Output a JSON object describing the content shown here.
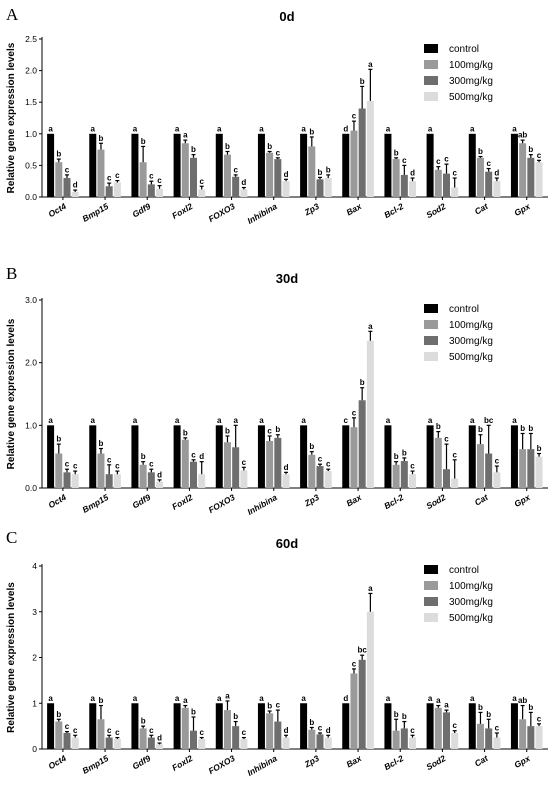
{
  "chart_data": [
    {
      "type": "bar",
      "panel_label": "A",
      "title": "0d",
      "ylabel": "Relative gene expression levels",
      "ylim": [
        0,
        2.5
      ],
      "yticks": [
        "0.0",
        "0.5",
        "1.0",
        "1.5",
        "2.0",
        "2.5"
      ],
      "categories": [
        "Oct4",
        "Bmp15",
        "Gdf9",
        "Foxl2",
        "FOXO3",
        "Inhibina",
        "Zp3",
        "Bax",
        "Bcl-2",
        "Sod2",
        "Cat",
        "Gpx"
      ],
      "legend_position": "top-right",
      "series": [
        {
          "name": "control",
          "color": "#000000",
          "values": [
            1,
            1,
            1,
            1,
            1,
            1,
            1,
            1,
            1,
            1,
            1,
            1
          ],
          "errors": [
            0,
            0,
            0,
            0,
            0,
            0,
            0,
            0,
            0,
            0,
            0,
            0
          ],
          "letters": [
            "a",
            "a",
            "a",
            "a",
            "a",
            "a",
            "a",
            "d",
            "a",
            "a",
            "a",
            "a"
          ]
        },
        {
          "name": "100mg/kg",
          "color": "#9a9a9a",
          "values": [
            0.55,
            0.75,
            0.55,
            0.85,
            0.67,
            0.7,
            0.8,
            1.05,
            0.6,
            0.43,
            0.62,
            0.85
          ],
          "errors": [
            0.05,
            0.1,
            0.25,
            0.05,
            0.05,
            0.02,
            0.15,
            0.15,
            0.02,
            0.05,
            0.02,
            0.05
          ],
          "letters": [
            "b",
            "b",
            "b",
            "a",
            "b",
            "b",
            "b",
            "c",
            "b",
            "c",
            "b",
            "ab"
          ]
        },
        {
          "name": "300mg/kg",
          "color": "#6e6e6e",
          "values": [
            0.3,
            0.17,
            0.2,
            0.62,
            0.32,
            0.6,
            0.28,
            1.4,
            0.35,
            0.37,
            0.4,
            0.62
          ],
          "errors": [
            0.05,
            0.05,
            0.05,
            0.05,
            0.03,
            0.02,
            0.03,
            0.35,
            0.15,
            0.15,
            0.05,
            0.05
          ],
          "letters": [
            "c",
            "c",
            "c",
            "b",
            "c",
            "c",
            "b",
            "b",
            "c",
            "c",
            "c",
            "b"
          ]
        },
        {
          "name": "500mg/kg",
          "color": "#dcdcdc",
          "values": [
            0.08,
            0.23,
            0.13,
            0.12,
            0.12,
            0.25,
            0.3,
            1.52,
            0.25,
            0.15,
            0.25,
            0.55
          ],
          "errors": [
            0.03,
            0.03,
            0.05,
            0.05,
            0.03,
            0.03,
            0.05,
            0.5,
            0.05,
            0.15,
            0.05,
            0.03
          ],
          "letters": [
            "d",
            "c",
            "c",
            "c",
            "d",
            "d",
            "b",
            "a",
            "d",
            "c",
            "d",
            "c"
          ]
        }
      ]
    },
    {
      "type": "bar",
      "panel_label": "B",
      "title": "30d",
      "ylabel": "Relative gene expression levels",
      "ylim": [
        0,
        3.0
      ],
      "yticks": [
        "0.0",
        "1.0",
        "2.0",
        "3.0"
      ],
      "categories": [
        "Oct4",
        "Bmp15",
        "Gdf9",
        "Foxl2",
        "FOXO3",
        "Inhibina",
        "Zp3",
        "Bax",
        "Bcl-2",
        "Sod2",
        "Cat",
        "Gpx"
      ],
      "legend_position": "top-right",
      "series": [
        {
          "name": "control",
          "color": "#000000",
          "values": [
            1,
            1,
            1,
            1,
            1,
            1,
            1,
            1,
            1,
            1,
            1,
            1
          ],
          "errors": [
            0,
            0,
            0,
            0,
            0,
            0,
            0,
            0,
            0,
            0,
            0,
            0
          ],
          "letters": [
            "a",
            "a",
            "a",
            "a",
            "a",
            "a",
            "a",
            "c",
            "a",
            "a",
            "a",
            "a"
          ]
        },
        {
          "name": "100mg/kg",
          "color": "#9a9a9a",
          "values": [
            0.55,
            0.55,
            0.37,
            0.77,
            0.73,
            0.75,
            0.53,
            0.97,
            0.37,
            0.8,
            0.7,
            0.62
          ],
          "errors": [
            0.15,
            0.08,
            0.05,
            0.03,
            0.1,
            0.08,
            0.05,
            0.15,
            0.05,
            0.1,
            0.15,
            0.25
          ],
          "letters": [
            "b",
            "b",
            "b",
            "b",
            "b",
            "c",
            "b",
            "c",
            "b",
            "b",
            "b",
            "b"
          ]
        },
        {
          "name": "300mg/kg",
          "color": "#6e6e6e",
          "values": [
            0.25,
            0.22,
            0.25,
            0.42,
            0.65,
            0.8,
            0.35,
            1.4,
            0.43,
            0.3,
            0.55,
            0.62
          ],
          "errors": [
            0.05,
            0.15,
            0.05,
            0.03,
            0.35,
            0.05,
            0.03,
            0.2,
            0.05,
            0.4,
            0.45,
            0.25
          ],
          "letters": [
            "c",
            "c",
            "c",
            "c",
            "a",
            "b",
            "c",
            "b",
            "b",
            "c",
            "bc",
            "b"
          ]
        },
        {
          "name": "500mg/kg",
          "color": "#dcdcdc",
          "values": [
            0.22,
            0.22,
            0.1,
            0.22,
            0.28,
            0.22,
            0.27,
            2.35,
            0.22,
            0.15,
            0.25,
            0.5
          ],
          "errors": [
            0.05,
            0.05,
            0.03,
            0.2,
            0.05,
            0.03,
            0.03,
            0.15,
            0.05,
            0.3,
            0.1,
            0.05
          ],
          "letters": [
            "c",
            "c",
            "d",
            "d",
            "c",
            "d",
            "c",
            "a",
            "c",
            "c",
            "c",
            "b"
          ]
        }
      ]
    },
    {
      "type": "bar",
      "panel_label": "C",
      "title": "60d",
      "ylabel": "Relative gene expression levels",
      "ylim": [
        0,
        4
      ],
      "yticks": [
        "0",
        "1",
        "2",
        "3",
        "4"
      ],
      "categories": [
        "Oct4",
        "Bmp15",
        "Gdf9",
        "Foxl2",
        "FOXO3",
        "Inhibina",
        "Zp3",
        "Bax",
        "Bcl-2",
        "Sod2",
        "Cat",
        "Gpx"
      ],
      "legend_position": "top-right",
      "series": [
        {
          "name": "control",
          "color": "#000000",
          "values": [
            1,
            1,
            1,
            1,
            1,
            1,
            1,
            1,
            1,
            1,
            1,
            1
          ],
          "errors": [
            0,
            0,
            0,
            0,
            0,
            0,
            0,
            0,
            0,
            0,
            0,
            0
          ],
          "letters": [
            "a",
            "a",
            "a",
            "a",
            "a",
            "a",
            "a",
            "d",
            "a",
            "a",
            "a",
            "a"
          ]
        },
        {
          "name": "100mg/kg",
          "color": "#9a9a9a",
          "values": [
            0.6,
            0.65,
            0.45,
            0.9,
            0.85,
            0.78,
            0.42,
            1.65,
            0.4,
            0.9,
            0.55,
            0.65
          ],
          "errors": [
            0.05,
            0.3,
            0.05,
            0.05,
            0.2,
            0.05,
            0.05,
            0.1,
            0.25,
            0.05,
            0.25,
            0.3
          ],
          "letters": [
            "b",
            "b",
            "b",
            "a",
            "a",
            "b",
            "b",
            "c",
            "b",
            "a",
            "b",
            "ab"
          ]
        },
        {
          "name": "300mg/kg",
          "color": "#6e6e6e",
          "values": [
            0.35,
            0.25,
            0.25,
            0.4,
            0.5,
            0.6,
            0.32,
            1.95,
            0.45,
            0.8,
            0.45,
            0.5
          ],
          "errors": [
            0.03,
            0.05,
            0.05,
            0.3,
            0.1,
            0.25,
            0.03,
            0.1,
            0.15,
            0.05,
            0.2,
            0.3
          ],
          "letters": [
            "c",
            "c",
            "c",
            "b",
            "b",
            "c",
            "c",
            "bc",
            "b",
            "a",
            "b",
            "b"
          ]
        },
        {
          "name": "500mg/kg",
          "color": "#dcdcdc",
          "values": [
            0.25,
            0.22,
            0.1,
            0.22,
            0.22,
            0.25,
            0.25,
            3.0,
            0.25,
            0.35,
            0.25,
            0.5
          ],
          "errors": [
            0.05,
            0.03,
            0.03,
            0.03,
            0.03,
            0.05,
            0.05,
            0.4,
            0.05,
            0.05,
            0.1,
            0.05
          ],
          "letters": [
            "c",
            "c",
            "d",
            "c",
            "c",
            "d",
            "d",
            "a",
            "c",
            "c",
            "c",
            "c"
          ]
        }
      ]
    }
  ]
}
